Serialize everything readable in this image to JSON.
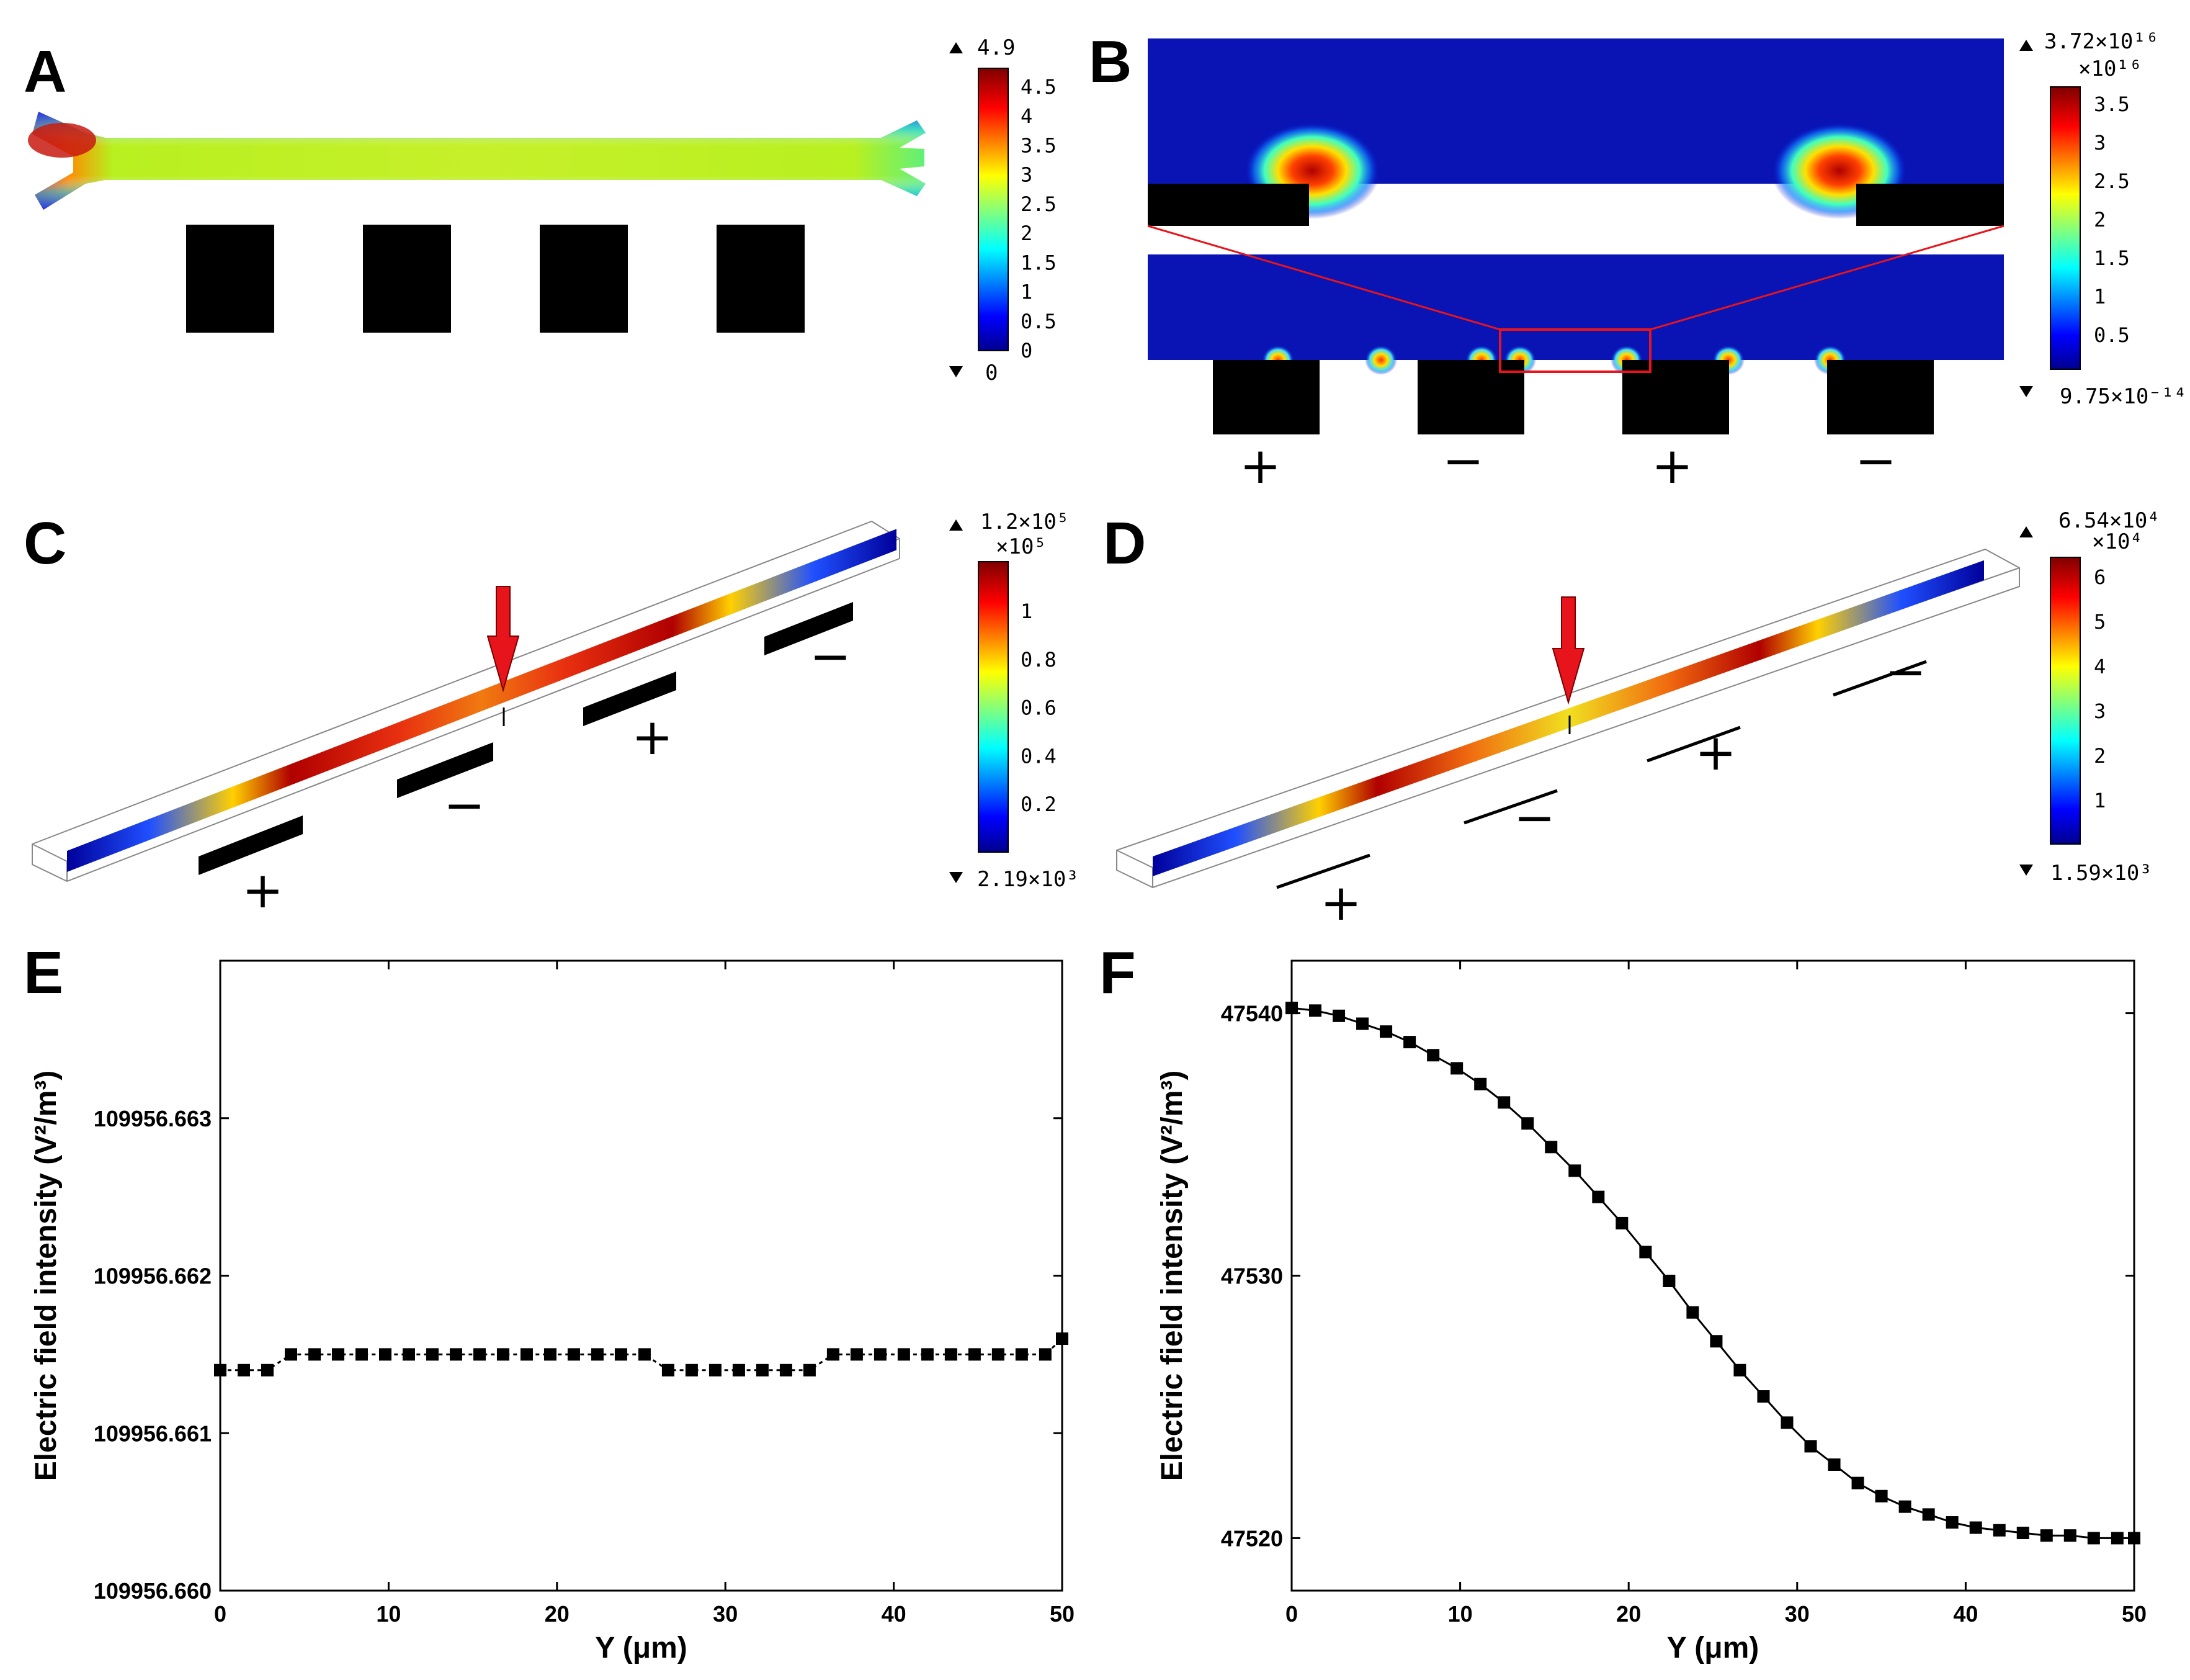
{
  "panels": {
    "A": "A",
    "B": "B",
    "C": "C",
    "D": "D",
    "E": "E",
    "F": "F"
  },
  "colorbar_A": {
    "max_label": "4.9",
    "min_label": "0",
    "ticks": [
      "4.5",
      "4",
      "3.5",
      "3",
      "2.5",
      "2",
      "1.5",
      "1",
      "0.5",
      "0"
    ]
  },
  "colorbar_B": {
    "max_label": "3.72×10¹⁶",
    "multiplier": "×10¹⁶",
    "min_label": "9.75×10⁻¹⁴",
    "ticks": [
      "3.5",
      "3",
      "2.5",
      "2",
      "1.5",
      "1",
      "0.5"
    ]
  },
  "colorbar_C": {
    "max_label": "1.2×10⁵",
    "multiplier": "×10⁵",
    "min_label": "2.19×10³",
    "ticks": [
      "1",
      "0.8",
      "0.6",
      "0.4",
      "0.2"
    ]
  },
  "colorbar_D": {
    "max_label": "6.54×10⁴",
    "multiplier": "×10⁴",
    "min_label": "1.59×10³",
    "ticks": [
      "6",
      "5",
      "4",
      "3",
      "2",
      "1"
    ]
  },
  "signs": {
    "plus": "+",
    "minus": "−"
  },
  "colors": {
    "red_arrow": "#e8141b",
    "jet_low": "#00008f",
    "jet_high": "#7f0000",
    "plot_line": "#000000"
  },
  "chart_data": [
    {
      "type": "line",
      "panel": "E",
      "xlabel": "Y (μm)",
      "ylabel": "Electric field intensity (V²/m³)",
      "xlim": [
        0,
        50
      ],
      "ylim": [
        109956.66,
        109956.664
      ],
      "xticks": [
        "0",
        "10",
        "20",
        "30",
        "40",
        "50"
      ],
      "yticks": [
        "109956.660",
        "109956.661",
        "109956.662",
        "109956.663"
      ],
      "x": [
        0,
        1.4,
        2.8,
        4.2,
        5.6,
        7,
        8.4,
        9.8,
        11.2,
        12.6,
        14,
        15.4,
        16.8,
        18.2,
        19.6,
        21,
        22.4,
        23.8,
        25.2,
        26.6,
        28,
        29.4,
        30.8,
        32.2,
        33.6,
        35,
        36.4,
        37.8,
        39.2,
        40.6,
        42,
        43.4,
        44.8,
        46.2,
        47.6,
        49,
        50
      ],
      "y": [
        109956.6614,
        109956.6614,
        109956.6614,
        109956.6615,
        109956.6615,
        109956.6615,
        109956.6615,
        109956.6615,
        109956.6615,
        109956.6615,
        109956.6615,
        109956.6615,
        109956.6615,
        109956.6615,
        109956.6615,
        109956.6615,
        109956.6615,
        109956.6615,
        109956.6615,
        109956.6614,
        109956.6614,
        109956.6614,
        109956.6614,
        109956.6614,
        109956.6614,
        109956.6614,
        109956.6615,
        109956.6615,
        109956.6615,
        109956.6615,
        109956.6615,
        109956.6615,
        109956.6615,
        109956.6615,
        109956.6615,
        109956.6615,
        109956.6616
      ]
    },
    {
      "type": "line",
      "panel": "F",
      "xlabel": "Y (μm)",
      "ylabel": "Electric field intensity (V²/m³)",
      "xlim": [
        0,
        50
      ],
      "ylim": [
        47518,
        47542
      ],
      "xticks": [
        "0",
        "10",
        "20",
        "30",
        "40",
        "50"
      ],
      "yticks": [
        "47520",
        "47530",
        "47540"
      ],
      "x": [
        0,
        1.4,
        2.8,
        4.2,
        5.6,
        7,
        8.4,
        9.8,
        11.2,
        12.6,
        14,
        15.4,
        16.8,
        18.2,
        19.6,
        21,
        22.4,
        23.8,
        25.2,
        26.6,
        28,
        29.4,
        30.8,
        32.2,
        33.6,
        35,
        36.4,
        37.8,
        39.2,
        40.6,
        42,
        43.4,
        44.8,
        46.2,
        47.6,
        49,
        50
      ],
      "y": [
        47540.2,
        47540.1,
        47539.9,
        47539.6,
        47539.3,
        47538.9,
        47538.4,
        47537.9,
        47537.3,
        47536.6,
        47535.8,
        47534.9,
        47534.0,
        47533.0,
        47532.0,
        47530.9,
        47529.8,
        47528.6,
        47527.5,
        47526.4,
        47525.4,
        47524.4,
        47523.5,
        47522.8,
        47522.1,
        47521.6,
        47521.2,
        47520.9,
        47520.6,
        47520.4,
        47520.3,
        47520.2,
        47520.1,
        47520.1,
        47520.0,
        47520.0,
        47520.0
      ]
    }
  ]
}
